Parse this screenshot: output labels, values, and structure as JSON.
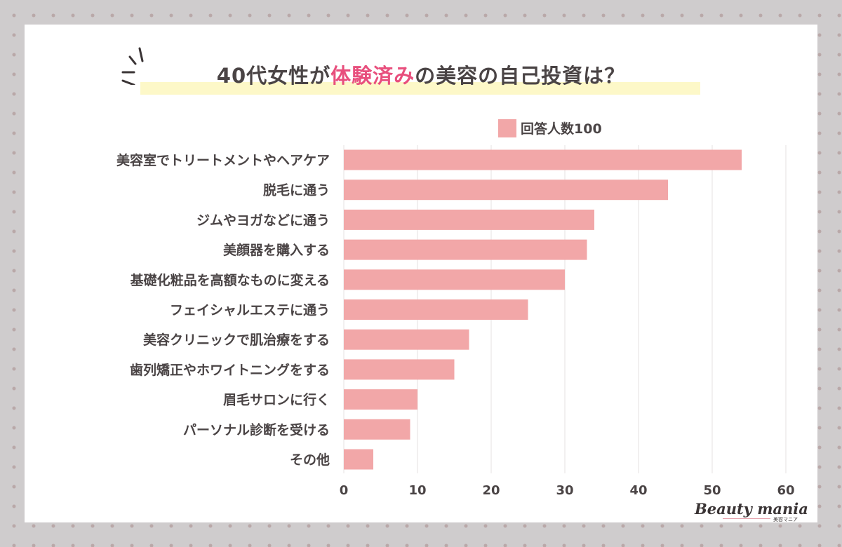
{
  "title": {
    "prefix": "40代女性が",
    "accent": "体験済み",
    "suffix": "の美容の自己投資は？"
  },
  "legend": {
    "label": "回答人数100"
  },
  "colors": {
    "bar": "#f2a7a8",
    "accent": "#e84f7d",
    "text": "#4a4445",
    "highlight": "#fdf8c8"
  },
  "chart_data": {
    "type": "bar",
    "orientation": "horizontal",
    "title": "40代女性が体験済みの美容の自己投資は？",
    "series": [
      {
        "name": "回答人数100"
      }
    ],
    "categories": [
      "美容室でトリートメントやヘアケア",
      "脱毛に通う",
      "ジムやヨガなどに通う",
      "美顔器を購入する",
      "基礎化粧品を高額なものに変える",
      "フェイシャルエステに通う",
      "美容クリニックで肌治療をする",
      "歯列矯正やホワイトニングをする",
      "眉毛サロンに行く",
      "パーソナル診断を受ける",
      "その他"
    ],
    "values": [
      54,
      44,
      34,
      33,
      30,
      25,
      17,
      15,
      10,
      9,
      4
    ],
    "xlim": [
      0,
      60
    ],
    "xticks": [
      "0",
      "10",
      "20",
      "30",
      "40",
      "50",
      "60"
    ],
    "grid": true,
    "legend_position": "top-right"
  },
  "logo": {
    "main": "Beauty mania",
    "sub": "美容マニア"
  }
}
